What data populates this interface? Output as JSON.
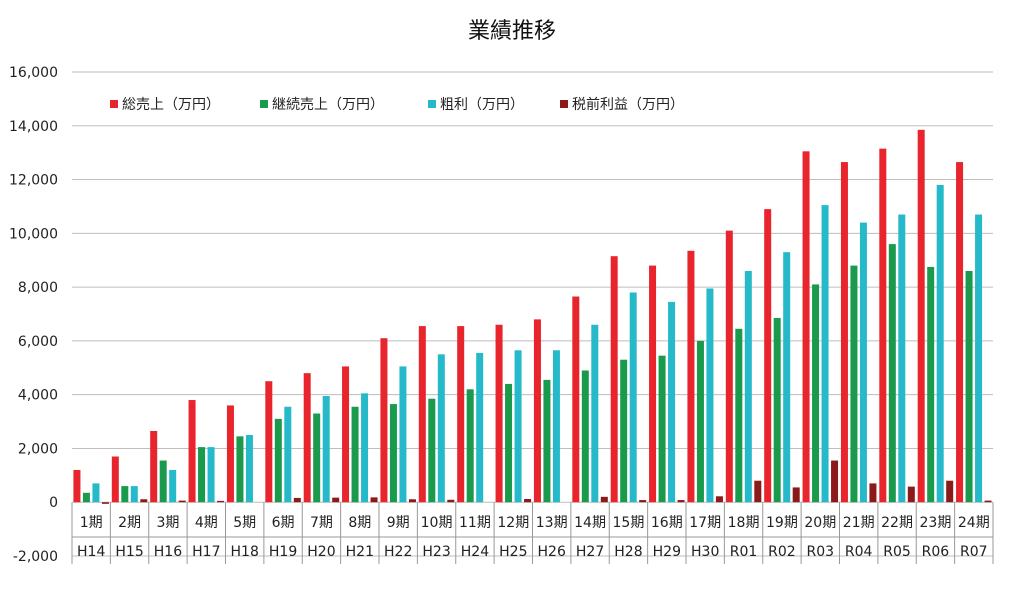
{
  "chart_data": {
    "type": "bar",
    "title": "業績推移",
    "xlabel": "",
    "ylabel": "",
    "ylim": [
      -2000,
      16000
    ],
    "yticks": [
      -2000,
      0,
      2000,
      4000,
      6000,
      8000,
      10000,
      12000,
      14000,
      16000
    ],
    "ytick_labels": [
      "-2,000",
      "0",
      "2,000",
      "4,000",
      "6,000",
      "8,000",
      "10,000",
      "12,000",
      "14,000",
      "16,000"
    ],
    "grid": true,
    "legend_position": "top-left",
    "categories": [
      "1期",
      "2期",
      "3期",
      "4期",
      "5期",
      "6期",
      "7期",
      "8期",
      "9期",
      "10期",
      "11期",
      "12期",
      "13期",
      "14期",
      "15期",
      "16期",
      "17期",
      "18期",
      "19期",
      "20期",
      "21期",
      "22期",
      "23期",
      "24期"
    ],
    "categories_sub": [
      "H14",
      "H15",
      "H16",
      "H17",
      "H18",
      "H19",
      "H20",
      "H21",
      "H22",
      "H23",
      "H24",
      "H25",
      "H26",
      "H27",
      "H28",
      "H29",
      "H30",
      "R01",
      "R02",
      "R03",
      "R04",
      "R05",
      "R06",
      "R07"
    ],
    "series": [
      {
        "name": "総売上（万円）",
        "color": "#e8242c",
        "values": [
          1200,
          1700,
          2650,
          3800,
          3600,
          4500,
          4800,
          5050,
          6100,
          6550,
          6550,
          6600,
          6800,
          7650,
          9150,
          8800,
          9350,
          10100,
          10900,
          13050,
          12650,
          13150,
          13850,
          12650
        ]
      },
      {
        "name": "継続売上（万円）",
        "color": "#1a9a4c",
        "values": [
          350,
          600,
          1550,
          2050,
          2450,
          3100,
          3300,
          3550,
          3650,
          3850,
          4200,
          4400,
          4550,
          4900,
          5300,
          5450,
          6000,
          6450,
          6850,
          8100,
          8800,
          9600,
          8750,
          8600
        ]
      },
      {
        "name": "粗利（万円）",
        "color": "#26b9c9",
        "values": [
          700,
          600,
          1200,
          2050,
          2500,
          3550,
          3950,
          4050,
          5050,
          5500,
          5550,
          5650,
          5650,
          6600,
          7800,
          7450,
          7950,
          8600,
          9300,
          11050,
          10400,
          10700,
          11800,
          10700
        ]
      },
      {
        "name": "税前利益（万円）",
        "color": "#8b1a1a",
        "values": [
          -60,
          110,
          60,
          50,
          0,
          160,
          170,
          180,
          110,
          90,
          0,
          120,
          0,
          200,
          80,
          80,
          220,
          800,
          550,
          1550,
          700,
          580,
          800,
          60
        ]
      }
    ]
  }
}
